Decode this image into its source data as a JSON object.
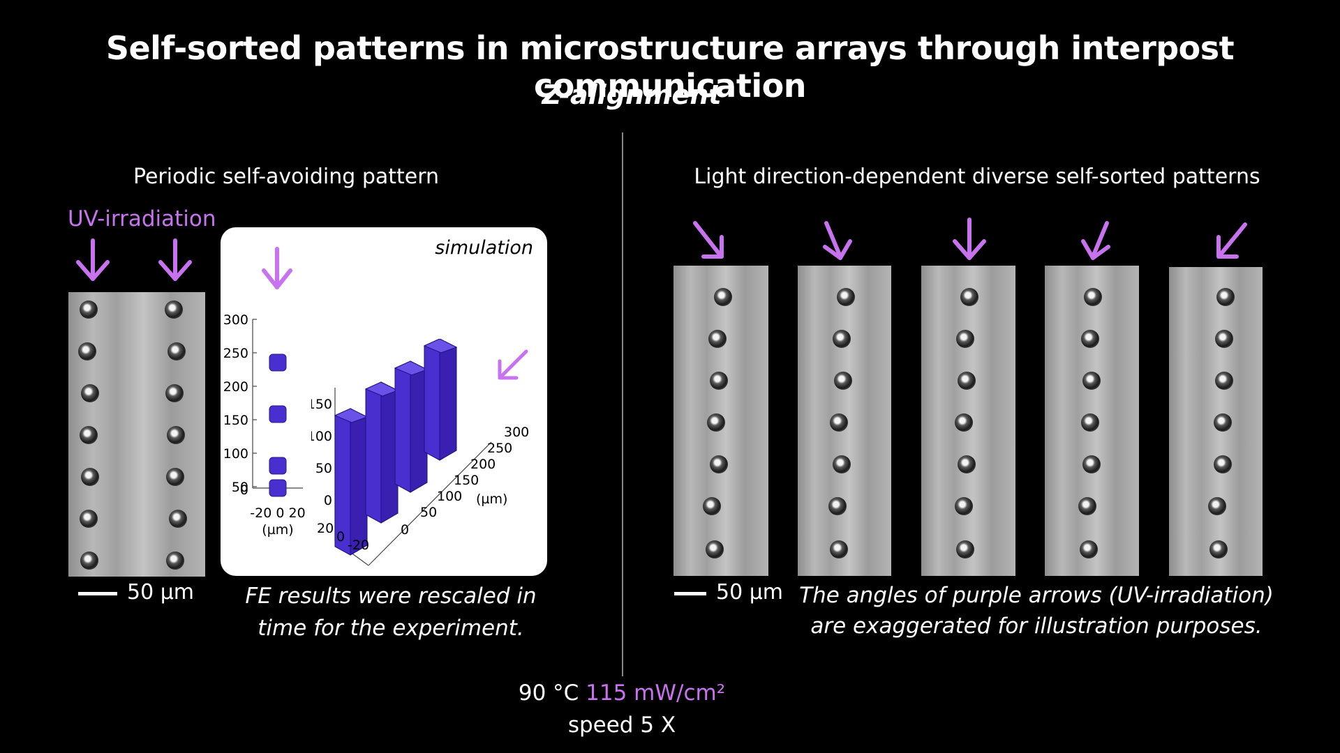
{
  "title": "Self-sorted patterns in microstructure arrays through interpost communication",
  "subtitle": "Z-alignment",
  "left": {
    "heading": "Periodic self-avoiding pattern",
    "uv_label": "UV-irradiation",
    "scale_label": "50 µm",
    "caption_line1": "FE results were rescaled in",
    "caption_line2": "time for the experiment.",
    "simulation": {
      "label": "simulation",
      "plot2d_yticks": [
        "300",
        "250",
        "200",
        "150",
        "100",
        "50",
        "0"
      ],
      "plot2d_xticks": "-20 0 20",
      "plot2d_unit": "(µm)",
      "plot3d_zticks": [
        "150",
        "100",
        "50",
        "0"
      ],
      "plot3d_yticks": [
        "300",
        "250",
        "200",
        "150",
        "100",
        "50",
        "0"
      ],
      "plot3d_yunit": "(µm)",
      "plot3d_xticks": [
        "20",
        "0",
        "-20"
      ]
    }
  },
  "right": {
    "heading": "Light direction-dependent diverse self-sorted patterns",
    "scale_label": "50 µm",
    "caption_line1": "The angles of purple arrows (UV-irradiation)",
    "caption_line2": "are exaggerated for illustration purposes."
  },
  "conditions": {
    "temperature": "90 °C",
    "intensity": "115 mW/cm²",
    "speed": "speed 5 X"
  },
  "colors": {
    "background": "#000000",
    "accent_purple": "#c872f0",
    "simulation_blue": "#4a2fd0"
  }
}
